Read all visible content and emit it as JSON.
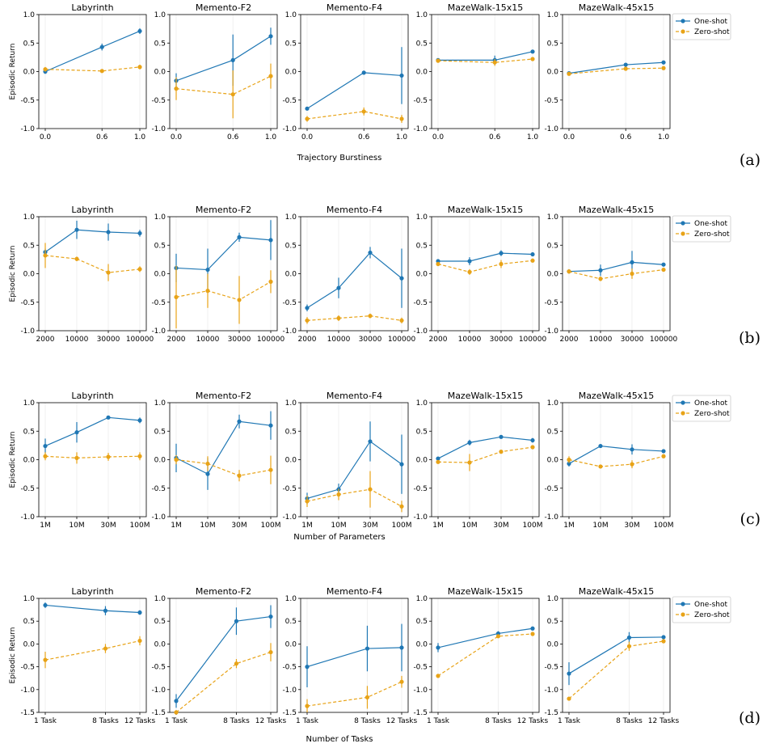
{
  "colors": {
    "one_shot": "#1f77b4",
    "zero_shot": "#e8a317",
    "grid": "#ececec",
    "axis": "#000000"
  },
  "legend": {
    "one_shot": "One-shot",
    "zero_shot": "Zero-shot",
    "placement": "right"
  },
  "chart_data": [
    {
      "id": "a",
      "panel_label": "(a)",
      "type": "line",
      "xlabel": "Trajectory Burstiness",
      "ylabel": "Episodic Return",
      "categories": [
        "0.0",
        "0.6",
        "1.0"
      ],
      "x": [
        0.0,
        0.6,
        1.0
      ],
      "x_scale": "numeric",
      "ylim": [
        -1.0,
        1.0
      ],
      "yticks": [
        -1.0,
        -0.5,
        0.0,
        0.5,
        1.0
      ],
      "grid": "vertical",
      "subplots": [
        {
          "title": "Labyrinth",
          "series": [
            {
              "key": "one_shot",
              "values": [
                0.0,
                0.43,
                0.71
              ],
              "err": [
                0.04,
                0.06,
                0.05
              ]
            },
            {
              "key": "zero_shot",
              "values": [
                0.04,
                0.01,
                0.08
              ],
              "err": [
                0.04,
                0.02,
                0.04
              ]
            }
          ]
        },
        {
          "title": "Memento-F2",
          "series": [
            {
              "key": "one_shot",
              "values": [
                -0.16,
                0.2,
                0.62
              ],
              "err": [
                0.13,
                0.45,
                0.15
              ]
            },
            {
              "key": "zero_shot",
              "values": [
                -0.3,
                -0.4,
                -0.08
              ],
              "err": [
                0.2,
                0.42,
                0.22
              ]
            }
          ]
        },
        {
          "title": "Memento-F4",
          "series": [
            {
              "key": "one_shot",
              "values": [
                -0.65,
                -0.02,
                -0.07
              ],
              "err": [
                0.03,
                0.02,
                0.5
              ]
            },
            {
              "key": "zero_shot",
              "values": [
                -0.83,
                -0.7,
                -0.83
              ],
              "err": [
                0.05,
                0.07,
                0.07
              ]
            }
          ]
        },
        {
          "title": "MazeWalk-15x15",
          "series": [
            {
              "key": "one_shot",
              "values": [
                0.2,
                0.2,
                0.35
              ],
              "err": [
                0.02,
                0.08,
                0.03
              ]
            },
            {
              "key": "zero_shot",
              "values": [
                0.19,
                0.16,
                0.22
              ],
              "err": [
                0.02,
                0.06,
                0.02
              ]
            }
          ]
        },
        {
          "title": "MazeWalk-45x15",
          "series": [
            {
              "key": "one_shot",
              "values": [
                -0.03,
                0.12,
                0.16
              ],
              "err": [
                0.02,
                0.02,
                0.03
              ]
            },
            {
              "key": "zero_shot",
              "values": [
                -0.04,
                0.05,
                0.06
              ],
              "err": [
                0.02,
                0.02,
                0.02
              ]
            }
          ]
        }
      ]
    },
    {
      "id": "b",
      "panel_label": "(b)",
      "type": "line",
      "xlabel": "",
      "ylabel": "Episodic Return",
      "categories": [
        "2000",
        "10000",
        "30000",
        "100000"
      ],
      "x_scale": "categorical",
      "ylim": [
        -1.0,
        1.0
      ],
      "yticks": [
        -1.0,
        -0.5,
        0.0,
        0.5,
        1.0
      ],
      "grid": "vertical",
      "subplots": [
        {
          "title": "Labyrinth",
          "series": [
            {
              "key": "one_shot",
              "values": [
                0.38,
                0.77,
                0.73,
                0.71
              ],
              "err": [
                0.06,
                0.16,
                0.15,
                0.06
              ]
            },
            {
              "key": "zero_shot",
              "values": [
                0.32,
                0.26,
                0.02,
                0.08
              ],
              "err": [
                0.22,
                0.04,
                0.15,
                0.05
              ]
            }
          ]
        },
        {
          "title": "Memento-F2",
          "series": [
            {
              "key": "one_shot",
              "values": [
                0.1,
                0.07,
                0.64,
                0.59
              ],
              "err": [
                0.25,
                0.37,
                0.08,
                0.35
              ]
            },
            {
              "key": "zero_shot",
              "values": [
                -0.41,
                -0.3,
                -0.46,
                -0.14
              ],
              "err": [
                0.55,
                0.3,
                0.42,
                0.2
              ]
            }
          ]
        },
        {
          "title": "Memento-F4",
          "series": [
            {
              "key": "one_shot",
              "values": [
                -0.6,
                -0.25,
                0.37,
                -0.08
              ],
              "err": [
                0.06,
                0.18,
                0.1,
                0.52
              ]
            },
            {
              "key": "zero_shot",
              "values": [
                -0.82,
                -0.78,
                -0.74,
                -0.82
              ],
              "err": [
                0.06,
                0.05,
                0.04,
                0.05
              ]
            }
          ]
        },
        {
          "title": "MazeWalk-15x15",
          "series": [
            {
              "key": "one_shot",
              "values": [
                0.22,
                0.22,
                0.36,
                0.34
              ],
              "err": [
                0.03,
                0.07,
                0.05,
                0.03
              ]
            },
            {
              "key": "zero_shot",
              "values": [
                0.17,
                0.03,
                0.17,
                0.23
              ],
              "err": [
                0.03,
                0.05,
                0.07,
                0.03
              ]
            }
          ]
        },
        {
          "title": "MazeWalk-45x15",
          "series": [
            {
              "key": "one_shot",
              "values": [
                0.04,
                0.06,
                0.2,
                0.16
              ],
              "err": [
                0.03,
                0.1,
                0.2,
                0.03
              ]
            },
            {
              "key": "zero_shot",
              "values": [
                0.04,
                -0.09,
                0.0,
                0.07
              ],
              "err": [
                0.04,
                0.04,
                0.09,
                0.03
              ]
            }
          ]
        }
      ]
    },
    {
      "id": "c",
      "panel_label": "(c)",
      "type": "line",
      "xlabel": "Number of Parameters",
      "ylabel": "Episodic Return",
      "categories": [
        "1M",
        "10M",
        "30M",
        "100M"
      ],
      "x_scale": "categorical",
      "ylim": [
        -1.0,
        1.0
      ],
      "yticks": [
        -1.0,
        -0.5,
        0.0,
        0.5,
        1.0
      ],
      "grid": "vertical",
      "subplots": [
        {
          "title": "Labyrinth",
          "series": [
            {
              "key": "one_shot",
              "values": [
                0.24,
                0.48,
                0.74,
                0.69
              ],
              "err": [
                0.13,
                0.18,
                0.03,
                0.05
              ]
            },
            {
              "key": "zero_shot",
              "values": [
                0.06,
                0.03,
                0.05,
                0.06
              ],
              "err": [
                0.07,
                0.1,
                0.07,
                0.07
              ]
            }
          ]
        },
        {
          "title": "Memento-F2",
          "series": [
            {
              "key": "one_shot",
              "values": [
                0.03,
                -0.25,
                0.67,
                0.6
              ],
              "err": [
                0.25,
                0.28,
                0.12,
                0.25
              ]
            },
            {
              "key": "zero_shot",
              "values": [
                0.0,
                -0.07,
                -0.28,
                -0.18
              ],
              "err": [
                0.08,
                0.13,
                0.1,
                0.25
              ]
            }
          ]
        },
        {
          "title": "Memento-F4",
          "series": [
            {
              "key": "one_shot",
              "values": [
                -0.68,
                -0.52,
                0.32,
                -0.08
              ],
              "err": [
                0.1,
                0.1,
                0.35,
                0.52
              ]
            },
            {
              "key": "zero_shot",
              "values": [
                -0.73,
                -0.61,
                -0.52,
                -0.82
              ],
              "err": [
                0.1,
                0.1,
                0.32,
                0.1
              ]
            }
          ]
        },
        {
          "title": "MazeWalk-15x15",
          "series": [
            {
              "key": "one_shot",
              "values": [
                0.02,
                0.3,
                0.4,
                0.34
              ],
              "err": [
                0.03,
                0.05,
                0.03,
                0.04
              ]
            },
            {
              "key": "zero_shot",
              "values": [
                -0.04,
                -0.05,
                0.14,
                0.22
              ],
              "err": [
                0.03,
                0.15,
                0.03,
                0.03
              ]
            }
          ]
        },
        {
          "title": "MazeWalk-45x15",
          "series": [
            {
              "key": "one_shot",
              "values": [
                -0.07,
                0.24,
                0.18,
                0.15
              ],
              "err": [
                0.05,
                0.03,
                0.09,
                0.03
              ]
            },
            {
              "key": "zero_shot",
              "values": [
                0.0,
                -0.12,
                -0.08,
                0.06
              ],
              "err": [
                0.06,
                0.02,
                0.07,
                0.03
              ]
            }
          ]
        }
      ]
    },
    {
      "id": "d",
      "panel_label": "(d)",
      "type": "line",
      "xlabel": "Number of Tasks",
      "ylabel": "Episodic Return",
      "categories": [
        "1 Task",
        "8 Tasks",
        "12 Tasks"
      ],
      "x_scale": "numeric",
      "x": [
        1,
        8,
        12
      ],
      "ylim": [
        -1.5,
        1.0
      ],
      "yticks": [
        -1.5,
        -1.0,
        -0.5,
        0.0,
        0.5,
        1.0
      ],
      "grid": "vertical",
      "subplots": [
        {
          "title": "Labyrinth",
          "series": [
            {
              "key": "one_shot",
              "values": [
                0.85,
                0.73,
                0.69
              ],
              "err": [
                0.06,
                0.1,
                0.05
              ]
            },
            {
              "key": "zero_shot",
              "values": [
                -0.35,
                -0.1,
                0.07
              ],
              "err": [
                0.18,
                0.1,
                0.1
              ]
            }
          ]
        },
        {
          "title": "Memento-F2",
          "series": [
            {
              "key": "one_shot",
              "values": [
                -1.25,
                0.5,
                0.6
              ],
              "err": [
                0.15,
                0.3,
                0.25
              ]
            },
            {
              "key": "zero_shot",
              "values": [
                -1.5,
                -0.43,
                -0.18
              ],
              "err": [
                0.05,
                0.1,
                0.2
              ]
            }
          ]
        },
        {
          "title": "Memento-F4",
          "series": [
            {
              "key": "one_shot",
              "values": [
                -0.5,
                -0.1,
                -0.08
              ],
              "err": [
                0.45,
                0.5,
                0.52
              ]
            },
            {
              "key": "zero_shot",
              "values": [
                -1.36,
                -1.17,
                -0.83
              ],
              "err": [
                0.15,
                0.25,
                0.13
              ]
            }
          ]
        },
        {
          "title": "MazeWalk-15x15",
          "series": [
            {
              "key": "one_shot",
              "values": [
                -0.08,
                0.23,
                0.34
              ],
              "err": [
                0.1,
                0.05,
                0.04
              ]
            },
            {
              "key": "zero_shot",
              "values": [
                -0.7,
                0.17,
                0.22
              ],
              "err": [
                0.03,
                0.03,
                0.03
              ]
            }
          ]
        },
        {
          "title": "MazeWalk-45x15",
          "series": [
            {
              "key": "one_shot",
              "values": [
                -0.65,
                0.14,
                0.15
              ],
              "err": [
                0.25,
                0.12,
                0.04
              ]
            },
            {
              "key": "zero_shot",
              "values": [
                -1.2,
                -0.05,
                0.06
              ],
              "err": [
                0.04,
                0.1,
                0.04
              ]
            }
          ]
        }
      ]
    }
  ]
}
